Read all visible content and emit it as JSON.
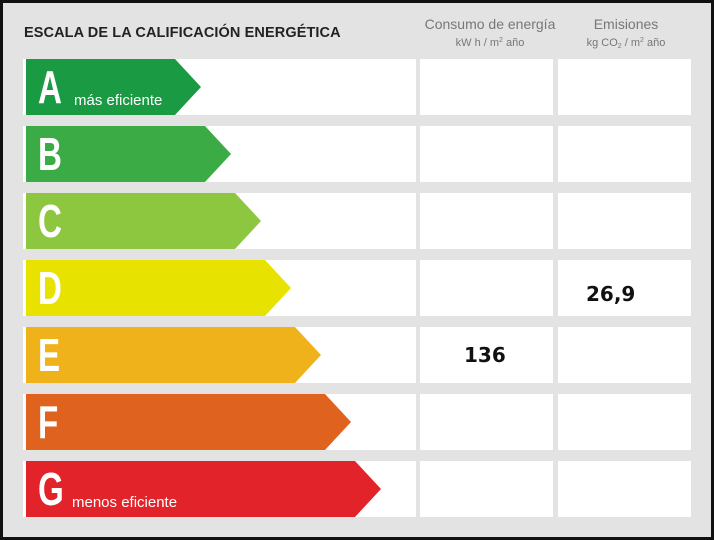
{
  "title": "ESCALA DE LA CALIFICACIÓN ENERGÉTICA",
  "columns": {
    "consumo": {
      "label": "Consumo de energía",
      "unit_pre": "kW h / m",
      "unit_sup": "2",
      "unit_post": " año"
    },
    "emisiones": {
      "label": "Emisiones",
      "unit_pre": "kg CO",
      "unit_sub": "2",
      "unit_mid": " / m",
      "unit_sup": "2",
      "unit_post": " año"
    }
  },
  "ratings": [
    {
      "letter": "A",
      "sublabel": "más eficiente",
      "color": "#1a9a43"
    },
    {
      "letter": "B",
      "sublabel": "",
      "color": "#3aab45"
    },
    {
      "letter": "C",
      "sublabel": "",
      "color": "#8dc63f"
    },
    {
      "letter": "D",
      "sublabel": "",
      "color": "#e8e200"
    },
    {
      "letter": "E",
      "sublabel": "",
      "color": "#f0b21a"
    },
    {
      "letter": "F",
      "sublabel": "",
      "color": "#e0621f"
    },
    {
      "letter": "G",
      "sublabel": "menos eficiente",
      "color": "#e2232a"
    }
  ],
  "values": {
    "consumo": {
      "rating": "E",
      "value": "136"
    },
    "emisiones": {
      "rating": "D",
      "value": "26,9"
    }
  }
}
